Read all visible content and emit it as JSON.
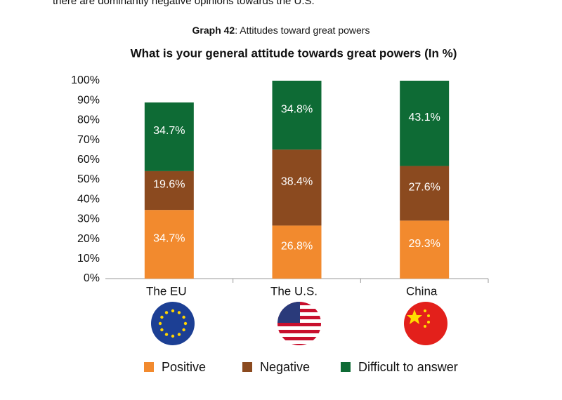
{
  "intro_text": "there are dominantly negative opinions towards the U.S.",
  "caption_label": "Graph 42",
  "caption": ": Attitudes toward great powers",
  "chart_data": {
    "type": "stacked_bar",
    "title": "What is your general attitude towards great powers (In %)",
    "categories": [
      "The EU",
      "The U.S.",
      "China"
    ],
    "series": [
      {
        "name": "Positive",
        "color": "#f28a2e",
        "values": [
          34.7,
          26.8,
          29.3
        ],
        "value_labels": [
          "34.7%",
          "26.8%",
          "29.3%"
        ]
      },
      {
        "name": "Negative",
        "color": "#8b4a1f",
        "values": [
          19.6,
          38.4,
          27.6
        ],
        "value_labels": [
          "19.6%",
          "38.4%",
          "27.6%"
        ]
      },
      {
        "name": "Difficult to answer",
        "color": "#0e6b35",
        "values": [
          34.7,
          34.8,
          43.1
        ],
        "value_labels": [
          "34.7%",
          "34.8%",
          "43.1%"
        ]
      }
    ],
    "ylim": [
      0,
      100
    ],
    "yticks": [
      {
        "value": 0,
        "label": "0%"
      },
      {
        "value": 10,
        "label": "10%"
      },
      {
        "value": 20,
        "label": "20%"
      },
      {
        "value": 30,
        "label": "30%"
      },
      {
        "value": 40,
        "label": "40%"
      },
      {
        "value": 50,
        "label": "50%"
      },
      {
        "value": 60,
        "label": "60%"
      },
      {
        "value": 70,
        "label": "70%"
      },
      {
        "value": 80,
        "label": "80%"
      },
      {
        "value": 90,
        "label": "90%"
      },
      {
        "value": 100,
        "label": "100%"
      }
    ],
    "legend": "bottom"
  }
}
